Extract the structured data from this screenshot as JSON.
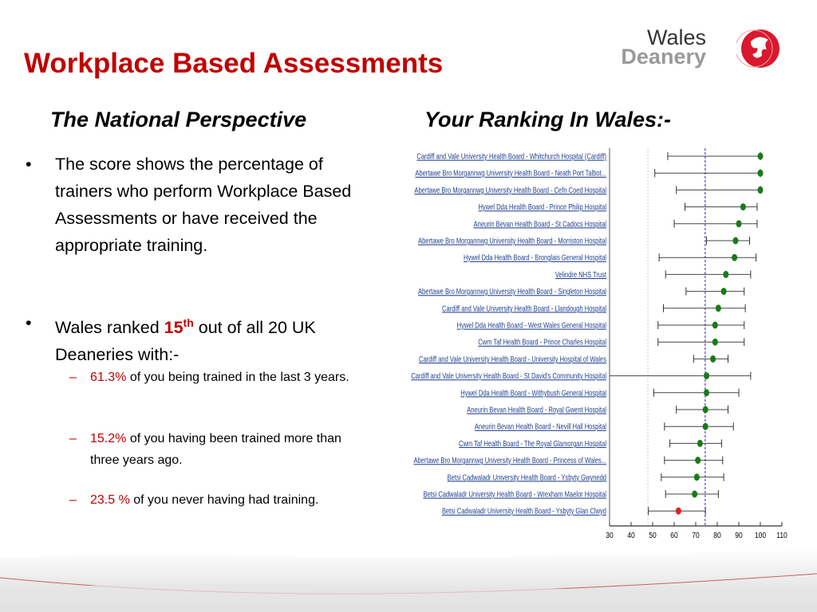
{
  "title": "Workplace Based Assessments",
  "logo": {
    "line1": "Wales",
    "line2": "Deanery"
  },
  "left_heading": "The National Perspective",
  "right_heading": "Your Ranking In Wales:-",
  "bullets": [
    {
      "text": "The score shows the percentage of trainers who perform Workplace Based Assessments or have received the appropriate training."
    },
    {
      "pre": "Wales ranked ",
      "rank": "15",
      "rank_sup": "th",
      "post": " out of all 20 UK Deaneries with:-"
    }
  ],
  "sub_bullets": [
    {
      "value": "61.3%",
      "text": " of you being trained in the last 3 years."
    },
    {
      "value": "15.2%",
      "text": " of you having been trained more than three years ago."
    },
    {
      "value": "23.5 %",
      "text": " of you never having had training."
    }
  ],
  "colors": {
    "title": "#c00000",
    "point": "#1a7a1a",
    "highlight": "#e02020",
    "mean_line": "#2222cc",
    "label": "#1f3f8f"
  },
  "chart_data": {
    "type": "scatter",
    "subtype": "forest-plot",
    "title": "Your Ranking In Wales:-",
    "xlim": [
      30,
      110
    ],
    "xticks": [
      30,
      40,
      50,
      60,
      70,
      80,
      90,
      100,
      110
    ],
    "reference_lines": {
      "mean": 74.4,
      "lower_dotted": 47.8
    },
    "rows": [
      {
        "label": "Cardiff and Vale University Health Board - Whitchurch Hospital (Cardiff)",
        "value": 100,
        "low": 57,
        "high": 100
      },
      {
        "label": "Abertawe Bro Morgannwg University Health Board - Neath Port Talbot...",
        "value": 100,
        "low": 51,
        "high": 100
      },
      {
        "label": "Abertawe Bro Morgannwg University Health Board - Cefn Coed Hospital",
        "value": 100,
        "low": 61,
        "high": 100
      },
      {
        "label": "Hywel Dda Health Board - Prince Philip Hospital",
        "value": 92,
        "low": 65,
        "high": 98.5
      },
      {
        "label": "Aneurin Bevan Health Board - St Cadocs Hospital",
        "value": 90,
        "low": 60,
        "high": 98.5
      },
      {
        "label": "Abertawe Bro Morgannwg University Health Board - Morriston Hospital",
        "value": 88.5,
        "low": 75,
        "high": 95
      },
      {
        "label": "Hywel Dda Health Board - Bronglais General Hospital",
        "value": 88,
        "low": 53,
        "high": 98
      },
      {
        "label": "Velindre NHS Trust",
        "value": 84,
        "low": 56,
        "high": 95.5
      },
      {
        "label": "Abertawe Bro Morgannwg University Health Board - Singleton Hospital",
        "value": 83,
        "low": 65.5,
        "high": 92.5
      },
      {
        "label": "Cardiff and Vale University Health Board - Llandough Hospital",
        "value": 80.5,
        "low": 55,
        "high": 93
      },
      {
        "label": "Hywel Dda Health Board - West Wales General Hospital",
        "value": 79,
        "low": 52.5,
        "high": 92.5
      },
      {
        "label": "Cwm Taf Health Board - Prince Charles Hospital",
        "value": 79,
        "low": 52.5,
        "high": 92.5
      },
      {
        "label": "Cardiff and Vale University Health Board - University Hospital of Wales",
        "value": 78,
        "low": 69,
        "high": 85
      },
      {
        "label": "Cardiff and Vale University Health Board - St David's Community Hospital",
        "value": 75,
        "low": 30,
        "high": 95.5
      },
      {
        "label": "Hywel Dda Health Board - Withybush General Hospital",
        "value": 75,
        "low": 50.5,
        "high": 90
      },
      {
        "label": "Aneurin Bevan Health Board - Royal Gwent Hospital",
        "value": 74.5,
        "low": 61,
        "high": 85
      },
      {
        "label": "Aneurin Bevan Health Board - Nevill Hall Hospital",
        "value": 74.5,
        "low": 55.5,
        "high": 87.5
      },
      {
        "label": "Cwm Taf Health Board - The Royal Glamorgan Hospital",
        "value": 72,
        "low": 58,
        "high": 82
      },
      {
        "label": "Abertawe Bro Morgannwg University Health Board - Princess of Wales...",
        "value": 71,
        "low": 55.5,
        "high": 82.5
      },
      {
        "label": "Betsi Cadwaladr University Health Board - Ysbyty Gwynedd",
        "value": 70.5,
        "low": 54,
        "high": 83
      },
      {
        "label": "Betsi Cadwaladr University Health Board - Wrexham Maelor Hospital",
        "value": 69.5,
        "low": 56,
        "high": 80.5
      },
      {
        "label": "Betsi Cadwaladr University Health Board - Ysbyty Glan Clwyd",
        "value": 62,
        "low": 48,
        "high": 74.5,
        "highlight": true
      }
    ]
  }
}
